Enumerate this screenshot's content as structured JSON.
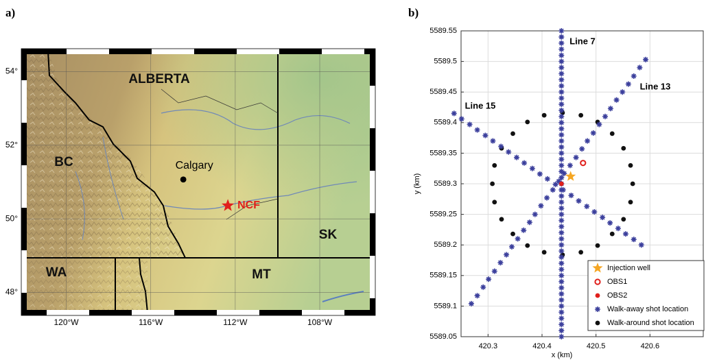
{
  "chart_data": [
    {
      "type": "map",
      "panel_label": "a)",
      "xlim": [
        -122,
        -105.5
      ],
      "ylim": [
        47.45,
        54.55
      ],
      "xticks": [
        {
          "value": -120,
          "label": "120°W"
        },
        {
          "value": -116,
          "label": "116°W"
        },
        {
          "value": -112,
          "label": "112°W"
        },
        {
          "value": -108,
          "label": "108°W"
        }
      ],
      "yticks": [
        {
          "value": 48,
          "label": "48°"
        },
        {
          "value": 50,
          "label": "50°"
        },
        {
          "value": 52,
          "label": "52°"
        },
        {
          "value": 54,
          "label": "54°"
        }
      ],
      "grid": true,
      "regions": [
        "ALBERTA",
        "BC",
        "WA",
        "MT",
        "SK"
      ],
      "points": [
        {
          "label": "Calgary",
          "lon": -114.46,
          "lat": 51.07,
          "marker": "circle",
          "color": "#000000"
        },
        {
          "label": "NCF",
          "lon": -112.35,
          "lat": 50.36,
          "marker": "star",
          "color": "#e0201c"
        }
      ]
    },
    {
      "type": "scatter",
      "panel_label": "b)",
      "xlabel": "x (km)",
      "ylabel": "y (km)",
      "xlim": [
        420.25,
        420.7
      ],
      "ylim": [
        5589.05,
        5589.55
      ],
      "xticks": [
        420.3,
        420.4,
        420.5,
        420.6
      ],
      "yticks": [
        5589.05,
        5589.1,
        5589.15,
        5589.2,
        5589.25,
        5589.3,
        5589.35,
        5589.4,
        5589.45,
        5589.5,
        5589.55
      ],
      "grid": true,
      "legend": "lower right",
      "annotations": [
        "Line 7",
        "Line 13",
        "Line 15"
      ],
      "series": [
        {
          "name": "Injection well",
          "marker": "star",
          "color": "#f5a623",
          "x": [
            420.453
          ],
          "y": [
            5589.312
          ]
        },
        {
          "name": "OBS1",
          "marker": "circle-open",
          "color": "#e0201c",
          "x": [
            420.476
          ],
          "y": [
            5589.334
          ]
        },
        {
          "name": "OBS2",
          "marker": "circle",
          "color": "#e0201c",
          "x": [
            420.436
          ],
          "y": [
            5589.3
          ]
        },
        {
          "name": "Walk-away shot location",
          "marker": "asterisk",
          "color": "#3b3f9c",
          "x": [
            420.436,
            420.436,
            420.436,
            420.436,
            420.436,
            420.436,
            420.436,
            420.436,
            420.436,
            420.436,
            420.436,
            420.436,
            420.436,
            420.436,
            420.436,
            420.436,
            420.436,
            420.436,
            420.436,
            420.436,
            420.436,
            420.436,
            420.436,
            420.436,
            420.436,
            420.436,
            420.436,
            420.436,
            420.436,
            420.436,
            420.436,
            420.436,
            420.436,
            420.436,
            420.436,
            420.436,
            420.436,
            420.436,
            420.436,
            420.436,
            420.436,
            420.436,
            420.436,
            420.436,
            420.436,
            420.436,
            420.436,
            420.436,
            420.436,
            420.436,
            420.436,
            420.269,
            420.28,
            420.291,
            420.301,
            420.312,
            420.323,
            420.334,
            420.344,
            420.355,
            420.366,
            420.377,
            420.387,
            420.398,
            420.409,
            420.42,
            420.431,
            420.441,
            420.452,
            420.463,
            420.474,
            420.484,
            420.495,
            420.506,
            420.517,
            420.527,
            420.538,
            420.549,
            420.56,
            420.57,
            420.581,
            420.592,
            420.237,
            420.251,
            420.266,
            420.28,
            420.295,
            420.309,
            420.324,
            420.338,
            420.353,
            420.367,
            420.382,
            420.396,
            420.41,
            420.425,
            420.439,
            420.454,
            420.468,
            420.483,
            420.497,
            420.512,
            420.526,
            420.541,
            420.555,
            420.57,
            420.584
          ],
          "y": [
            5589.05,
            5589.06,
            5589.07,
            5589.08,
            5589.09,
            5589.1,
            5589.11,
            5589.12,
            5589.13,
            5589.14,
            5589.15,
            5589.16,
            5589.17,
            5589.18,
            5589.19,
            5589.2,
            5589.21,
            5589.22,
            5589.23,
            5589.24,
            5589.25,
            5589.26,
            5589.27,
            5589.28,
            5589.29,
            5589.3,
            5589.31,
            5589.32,
            5589.33,
            5589.34,
            5589.35,
            5589.36,
            5589.37,
            5589.38,
            5589.39,
            5589.4,
            5589.41,
            5589.42,
            5589.43,
            5589.44,
            5589.45,
            5589.46,
            5589.47,
            5589.48,
            5589.49,
            5589.5,
            5589.51,
            5589.52,
            5589.53,
            5589.54,
            5589.55,
            5589.104,
            5589.117,
            5589.131,
            5589.144,
            5589.157,
            5589.171,
            5589.184,
            5589.197,
            5589.21,
            5589.224,
            5589.237,
            5589.25,
            5589.264,
            5589.277,
            5589.29,
            5589.304,
            5589.317,
            5589.33,
            5589.343,
            5589.357,
            5589.37,
            5589.383,
            5589.397,
            5589.41,
            5589.423,
            5589.437,
            5589.45,
            5589.463,
            5589.476,
            5589.49,
            5589.503,
            5589.415,
            5589.406,
            5589.397,
            5589.388,
            5589.379,
            5589.37,
            5589.361,
            5589.352,
            5589.343,
            5589.334,
            5589.325,
            5589.316,
            5589.308,
            5589.299,
            5589.29,
            5589.281,
            5589.272,
            5589.263,
            5589.254,
            5589.245,
            5589.236,
            5589.227,
            5589.218,
            5589.209,
            5589.2
          ]
        },
        {
          "name": "Walk-around shot location",
          "marker": "circle",
          "color": "#111111",
          "x": [
            420.568,
            420.564,
            420.551,
            420.53,
            420.503,
            420.472,
            420.438,
            420.404,
            420.373,
            420.346,
            420.325,
            420.312,
            420.308,
            420.312,
            420.325,
            420.346,
            420.373,
            420.404,
            420.438,
            420.472,
            420.503,
            420.53,
            420.551,
            420.564
          ],
          "y": [
            5589.3,
            5589.33,
            5589.358,
            5589.382,
            5589.401,
            5589.412,
            5589.416,
            5589.412,
            5589.401,
            5589.382,
            5589.358,
            5589.33,
            5589.3,
            5589.27,
            5589.242,
            5589.218,
            5589.199,
            5589.188,
            5589.184,
            5589.188,
            5589.199,
            5589.218,
            5589.242,
            5589.27
          ]
        }
      ]
    }
  ]
}
